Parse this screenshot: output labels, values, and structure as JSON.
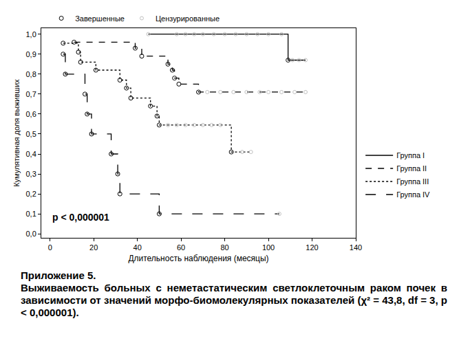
{
  "chart_data": {
    "type": "line",
    "x_label": "Длительность наблюдения (месяцы)",
    "y_label": "Кумулятивная доля выживших",
    "annotations": [
      "p < 0,000001"
    ],
    "caption": [
      "Приложение 5.",
      "Выживаемость больных с неметастатическим светлоклеточным раком почек в зависимости от значений морфо-биомолекулярных показателей (χ² = 43,8, df = 3, p < 0,000001)."
    ],
    "xlim": [
      -4,
      140
    ],
    "xticks": [
      0,
      20,
      40,
      60,
      80,
      100,
      120,
      140
    ],
    "ylim": [
      -0.02,
      1.03
    ],
    "yticks": [
      {
        "value": 0,
        "label": "0,0"
      },
      {
        "value": 0.1,
        "label": "0,1"
      },
      {
        "value": 0.2,
        "label": "0,2"
      },
      {
        "value": 0.3,
        "label": "0,3"
      },
      {
        "value": 0.4,
        "label": "0,4"
      },
      {
        "value": 0.5,
        "label": "0,5"
      },
      {
        "value": 0.6,
        "label": "0,6"
      },
      {
        "value": 0.7,
        "label": "0,7"
      },
      {
        "value": 0.8,
        "label": "0,8"
      },
      {
        "value": 0.9,
        "label": "0,9"
      },
      {
        "value": 1,
        "label": "1,0"
      }
    ],
    "grid": false,
    "legend": "right",
    "markers": [
      {
        "name": "Завершенные",
        "marker": "circle-open",
        "color": "#000000"
      },
      {
        "name": "Цензурированные",
        "marker": "circle-open",
        "color": "#c0c0c0"
      }
    ],
    "series": [
      {
        "name": "Группа I",
        "color": "#000000",
        "line_style": "solid",
        "x": [
          45,
          109,
          117
        ],
        "values": [
          1.0,
          0.87,
          0.87
        ],
        "event_x": [
          109
        ],
        "event_values": [
          0.87
        ],
        "censored_x": [
          45,
          58,
          62,
          66,
          70,
          75,
          80,
          85,
          90,
          95,
          100,
          106,
          111,
          114,
          117
        ],
        "censored_values": [
          1.0,
          1.0,
          1.0,
          1.0,
          1.0,
          1.0,
          1.0,
          1.0,
          1.0,
          1.0,
          1.0,
          1.0,
          0.87,
          0.87,
          0.87
        ]
      },
      {
        "name": "Группа II",
        "color": "#000000",
        "line_style": "dash",
        "x": [
          11,
          39,
          42,
          54,
          56,
          57,
          59,
          68,
          117
        ],
        "values": [
          0.96,
          0.93,
          0.89,
          0.85,
          0.82,
          0.78,
          0.75,
          0.71,
          0.71
        ],
        "event_x": [
          11,
          39,
          42,
          54,
          56,
          57,
          59,
          68
        ],
        "event_values": [
          0.96,
          0.93,
          0.89,
          0.85,
          0.82,
          0.78,
          0.75,
          0.71
        ],
        "censored_x": [
          72,
          78,
          84,
          90,
          96,
          100,
          106,
          112,
          117
        ],
        "censored_values": [
          0.71,
          0.71,
          0.71,
          0.71,
          0.71,
          0.71,
          0.71,
          0.71,
          0.71
        ]
      },
      {
        "name": "Группа III",
        "color": "#000000",
        "line_style": "dot",
        "x": [
          6,
          13,
          14,
          21,
          32,
          35,
          37,
          46,
          49,
          50,
          83,
          92
        ],
        "values": [
          0.955,
          0.91,
          0.86,
          0.82,
          0.77,
          0.73,
          0.68,
          0.64,
          0.59,
          0.545,
          0.41,
          0.41
        ],
        "event_x": [
          6,
          13,
          14,
          21,
          32,
          35,
          37,
          46,
          49,
          50,
          83
        ],
        "event_values": [
          0.955,
          0.91,
          0.86,
          0.82,
          0.77,
          0.73,
          0.68,
          0.64,
          0.59,
          0.545,
          0.41
        ],
        "censored_x": [
          54,
          58,
          62,
          66,
          70,
          74,
          78,
          88,
          92
        ],
        "censored_values": [
          0.545,
          0.545,
          0.545,
          0.545,
          0.545,
          0.545,
          0.545,
          0.41,
          0.41
        ]
      },
      {
        "name": "Группа IV",
        "color": "#000000",
        "line_style": "longdash",
        "x": [
          6,
          7,
          16,
          17,
          19,
          28,
          31,
          32,
          50,
          105
        ],
        "values": [
          0.9,
          0.8,
          0.7,
          0.6,
          0.5,
          0.4,
          0.3,
          0.2,
          0.1,
          0.1
        ],
        "event_x": [
          6,
          7,
          16,
          17,
          19,
          28,
          31,
          32,
          50
        ],
        "event_values": [
          0.9,
          0.8,
          0.7,
          0.6,
          0.5,
          0.4,
          0.3,
          0.2,
          0.1
        ],
        "censored_x": [
          105
        ],
        "censored_values": [
          0.1
        ]
      }
    ]
  }
}
